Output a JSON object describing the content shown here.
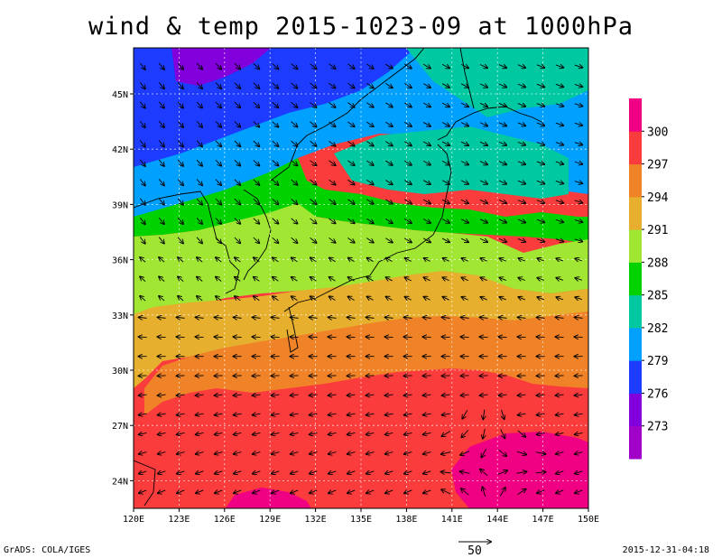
{
  "title": "wind & temp 2015-1023-09 at 1000hPa",
  "footer": {
    "credit": "GrADS: COLA/IGES",
    "timestamp": "2015-12-31-04:18",
    "reference_vector_label": "50"
  },
  "axes": {
    "lon_ticks": [
      "120E",
      "123E",
      "126E",
      "129E",
      "132E",
      "135E",
      "138E",
      "141E",
      "144E",
      "147E",
      "150E"
    ],
    "lat_ticks": [
      "24N",
      "27N",
      "30N",
      "33N",
      "36N",
      "39N",
      "42N",
      "45N"
    ],
    "lon_range": [
      120,
      150
    ],
    "lat_range": [
      22.5,
      47.5
    ],
    "grid": true
  },
  "colorbar": {
    "labels": [
      "273",
      "276",
      "279",
      "282",
      "285",
      "288",
      "291",
      "294",
      "297",
      "300"
    ],
    "colors": [
      "#a000c8",
      "#8200dc",
      "#1e3cff",
      "#00a0ff",
      "#00c8a0",
      "#00d200",
      "#a0e632",
      "#e6af2d",
      "#f08228",
      "#fa3c3c",
      "#f00082"
    ]
  }
}
